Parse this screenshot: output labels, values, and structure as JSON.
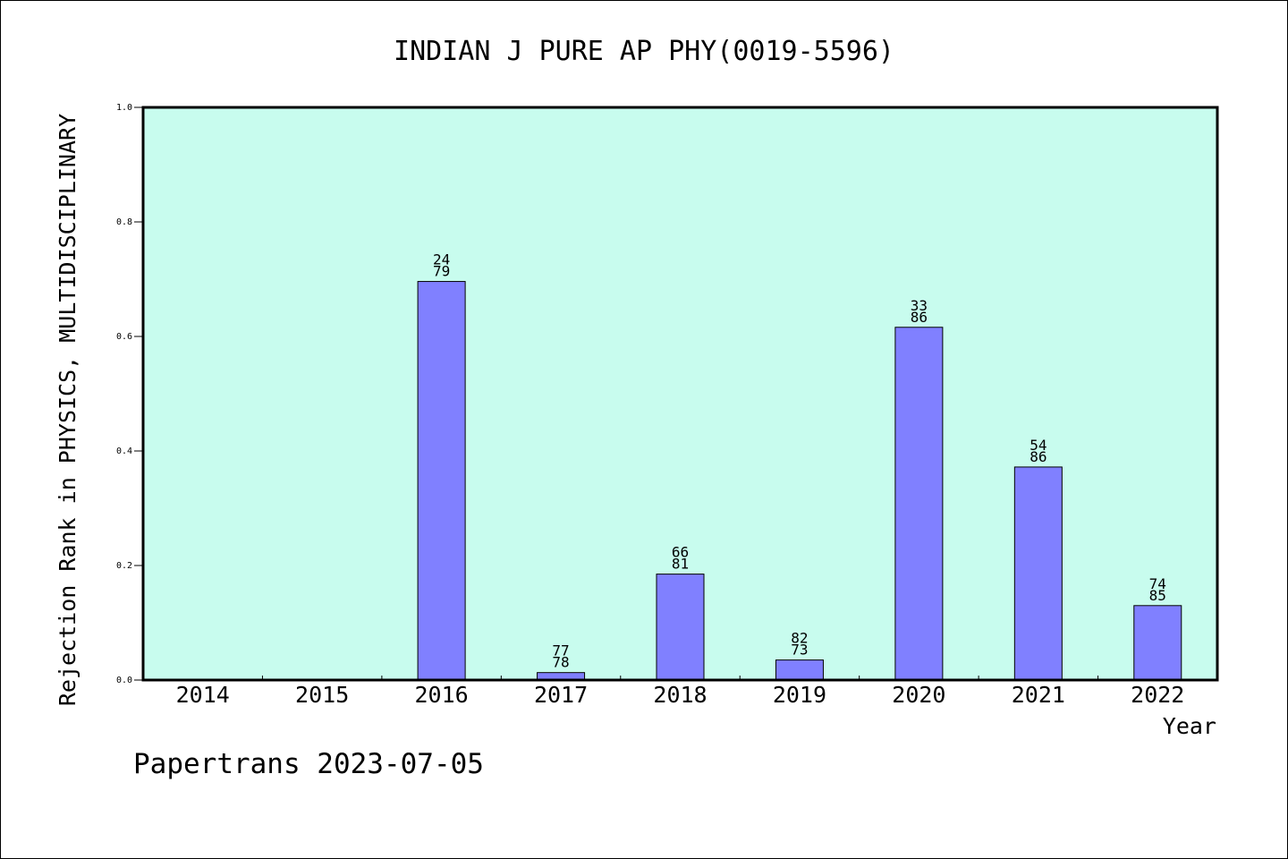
{
  "chart_data": {
    "type": "bar",
    "title": "INDIAN J PURE AP PHY(0019-5596)",
    "ylabel": "Rejection Rank in PHYSICS, MULTIDISCIPLINARY",
    "xlabel": "Year",
    "ylim": [
      0,
      1.0
    ],
    "yticks": [
      "0.0",
      "0.2",
      "0.4",
      "0.6",
      "0.8",
      "1.0"
    ],
    "categories": [
      "2014",
      "2015",
      "2016",
      "2017",
      "2018",
      "2019",
      "2020",
      "2021",
      "2022"
    ],
    "values": [
      0,
      0,
      0.696,
      0.013,
      0.185,
      0.035,
      0.616,
      0.372,
      0.13
    ],
    "labels_top": [
      "",
      "",
      "24",
      "77",
      "66",
      "82",
      "33",
      "54",
      "74"
    ],
    "labels_bottom": [
      "",
      "",
      "79",
      "78",
      "81",
      "73",
      "86",
      "86",
      "85"
    ],
    "plot_background": "#c8fcee",
    "bar_color": "#8080ff",
    "grid": false
  },
  "footer": "Papertrans 2023-07-05"
}
